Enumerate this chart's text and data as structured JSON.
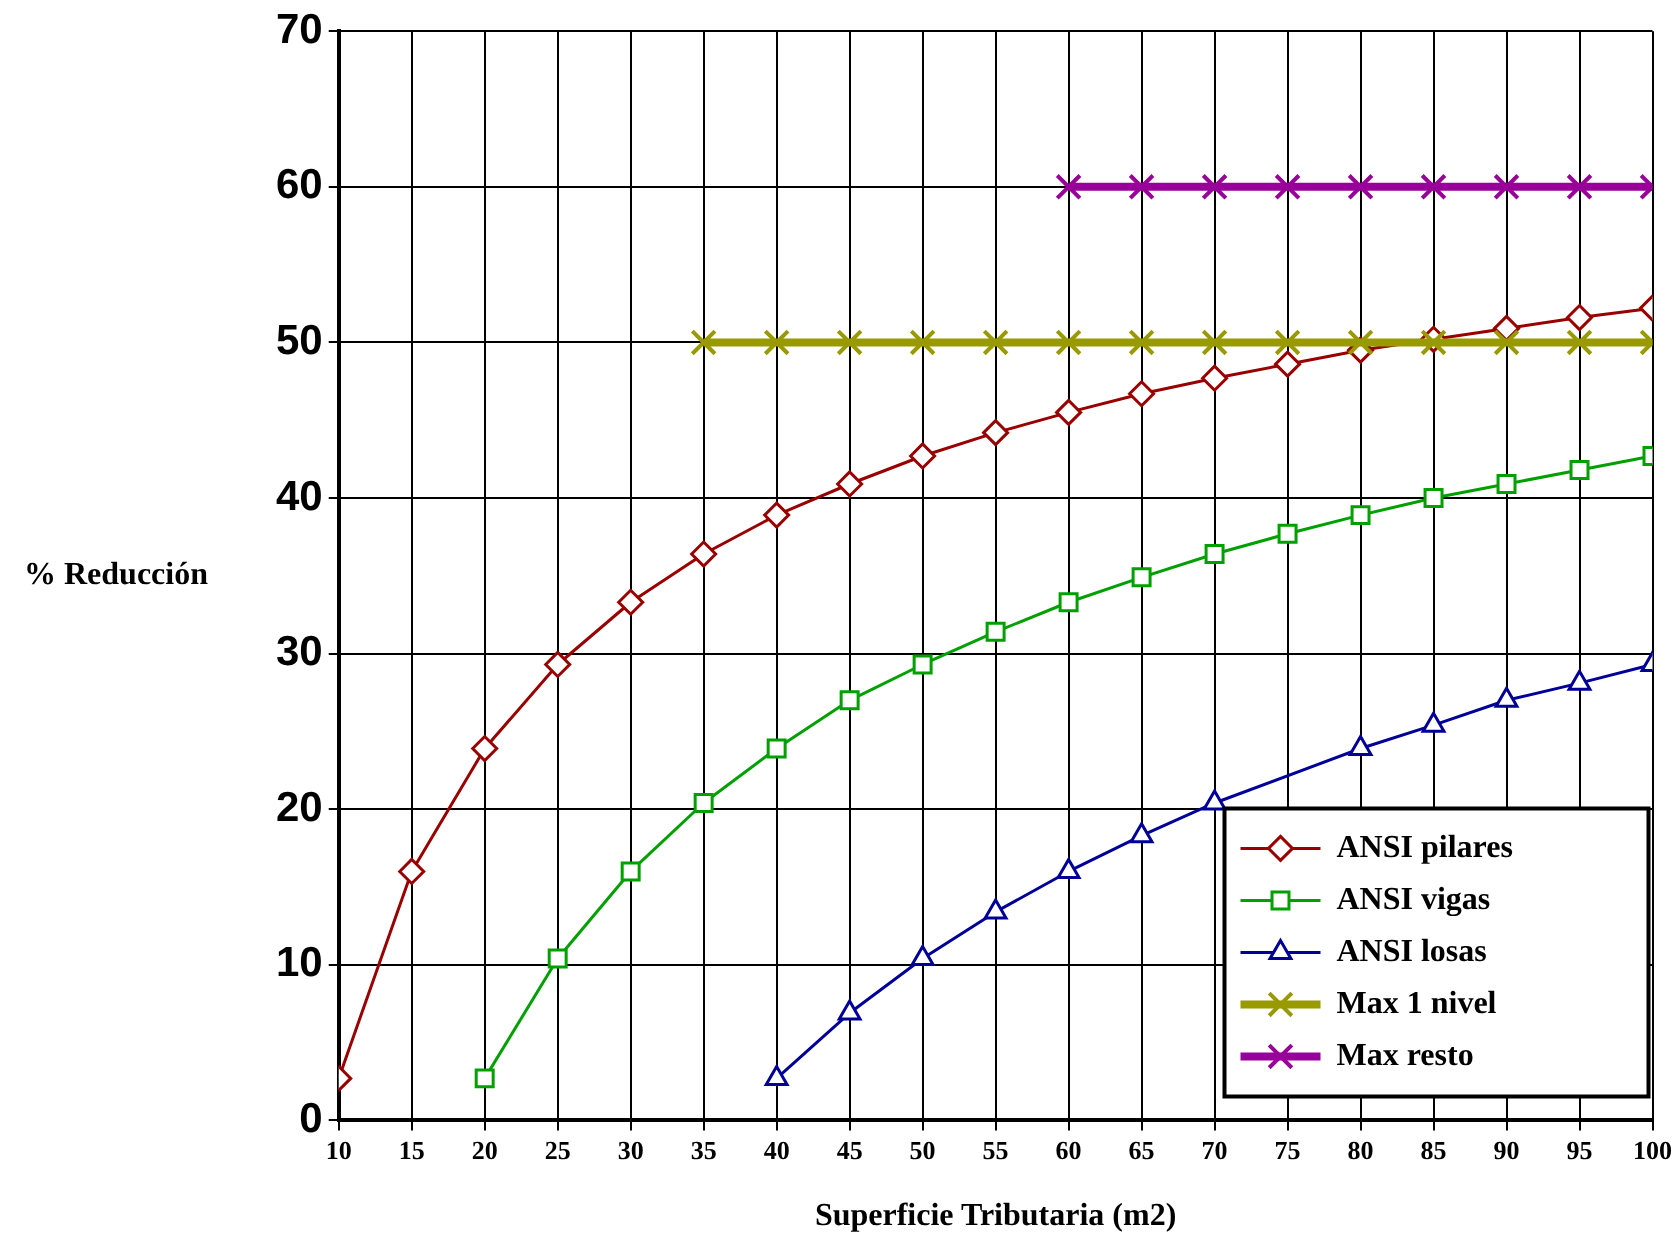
{
  "chart_data": {
    "type": "line",
    "xlabel": "Superficie Tributaria (m2)",
    "ylabel": "% Reducción",
    "x": [
      10,
      15,
      20,
      25,
      30,
      35,
      40,
      45,
      50,
      55,
      60,
      65,
      70,
      75,
      80,
      85,
      90,
      95,
      100
    ],
    "xlim": [
      10,
      100
    ],
    "xticks": [
      10,
      15,
      20,
      25,
      30,
      35,
      40,
      45,
      50,
      55,
      60,
      65,
      70,
      75,
      80,
      85,
      90,
      95,
      100
    ],
    "ylim": [
      0,
      70
    ],
    "yticks": [
      0,
      10,
      20,
      30,
      40,
      50,
      60,
      70
    ],
    "grid": true,
    "legend": "bottom right",
    "line_style": "solid",
    "series": [
      {
        "name": "ANSI pilares",
        "color": "#990000",
        "marker": "diamond",
        "values": [
          2.7,
          16.0,
          23.9,
          29.3,
          33.3,
          36.4,
          38.9,
          40.9,
          42.7,
          44.2,
          45.5,
          46.7,
          47.7,
          48.6,
          49.5,
          50.2,
          50.9,
          51.6,
          52.2
        ]
      },
      {
        "name": "ANSI vigas",
        "color": "#00a000",
        "marker": "square",
        "values": [
          null,
          null,
          2.7,
          10.4,
          16.0,
          20.4,
          23.9,
          27.0,
          29.3,
          31.4,
          33.3,
          34.9,
          36.4,
          37.7,
          38.9,
          40.0,
          40.9,
          41.8,
          42.7
        ]
      },
      {
        "name": "ANSI losas",
        "color": "#000099",
        "marker": "triangle",
        "values": [
          null,
          null,
          null,
          null,
          null,
          null,
          2.7,
          6.9,
          10.4,
          13.4,
          16.0,
          18.3,
          20.4,
          null,
          23.9,
          25.4,
          27.0,
          28.1,
          29.3
        ]
      },
      {
        "name": "Max 1 nivel",
        "color": "#999900",
        "marker": "cross",
        "values": [
          null,
          null,
          null,
          null,
          null,
          50,
          50,
          50,
          50,
          50,
          50,
          50,
          50,
          50,
          50,
          50,
          50,
          50,
          50
        ]
      },
      {
        "name": "Max resto",
        "color": "#990099",
        "marker": "cross",
        "values": [
          null,
          null,
          null,
          null,
          null,
          null,
          null,
          null,
          null,
          null,
          60,
          60,
          60,
          60,
          60,
          60,
          60,
          60,
          60
        ]
      }
    ]
  }
}
